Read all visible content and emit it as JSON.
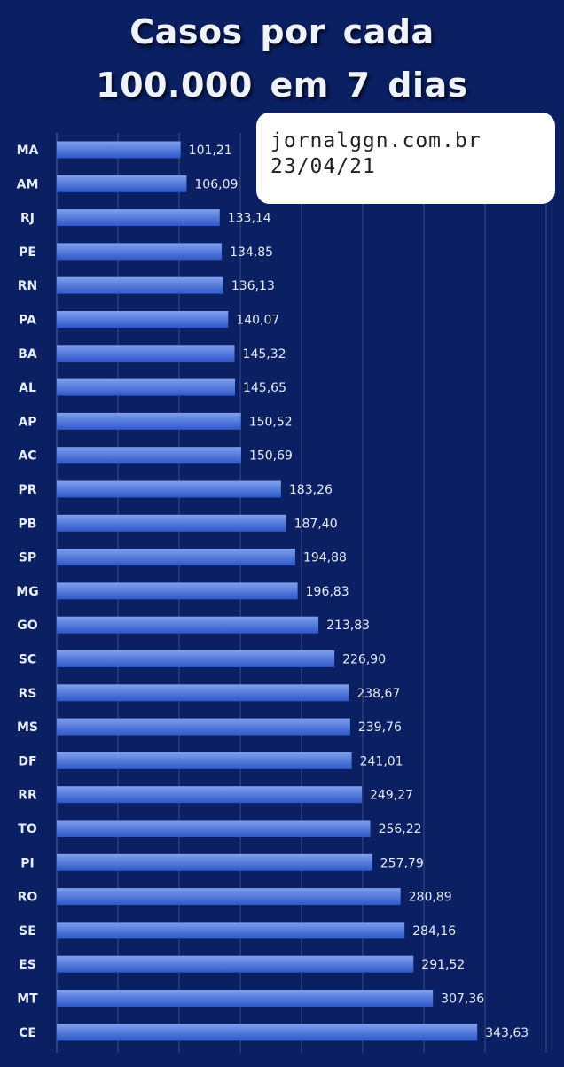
{
  "chart_data": {
    "type": "bar",
    "orientation": "horizontal",
    "title": "Casos  por cada",
    "subtitle": "100.000  em 7 dias",
    "categories": [
      "MA",
      "AM",
      "RJ",
      "PE",
      "RN",
      "PA",
      "BA",
      "AL",
      "AP",
      "AC",
      "PR",
      "PB",
      "SP",
      "MG",
      "GO",
      "SC",
      "RS",
      "MS",
      "DF",
      "RR",
      "TO",
      "PI",
      "RO",
      "SE",
      "ES",
      "MT",
      "CE"
    ],
    "values": [
      101.21,
      106.09,
      133.14,
      134.85,
      136.13,
      140.07,
      145.32,
      145.65,
      150.52,
      150.69,
      183.26,
      187.4,
      194.88,
      196.83,
      213.83,
      226.9,
      238.67,
      239.76,
      241.01,
      249.27,
      256.22,
      257.79,
      280.89,
      284.16,
      291.52,
      307.36,
      343.63
    ],
    "value_labels": [
      "101,21",
      "106,09",
      "133,14",
      "134,85",
      "136,13",
      "140,07",
      "145,32",
      "145,65",
      "150,52",
      "150,69",
      "183,26",
      "187,40",
      "194,88",
      "196,83",
      "213,83",
      "226,90",
      "238,67",
      "239,76",
      "241,01",
      "249,27",
      "256,22",
      "257,79",
      "280,89",
      "284,16",
      "291,52",
      "307,36",
      "343,63"
    ],
    "xlim": [
      0,
      400
    ],
    "grid": true,
    "xlabel": "",
    "ylabel": ""
  },
  "stamp": {
    "site": "jornalggn.com.br",
    "date": "23/04/21"
  },
  "colors": {
    "background": "#0b1f63",
    "bar_light": "#7ea0ee",
    "bar_dark": "#2f58c8",
    "gridline": "#3b4f8c",
    "label": "#e6ecf8"
  }
}
